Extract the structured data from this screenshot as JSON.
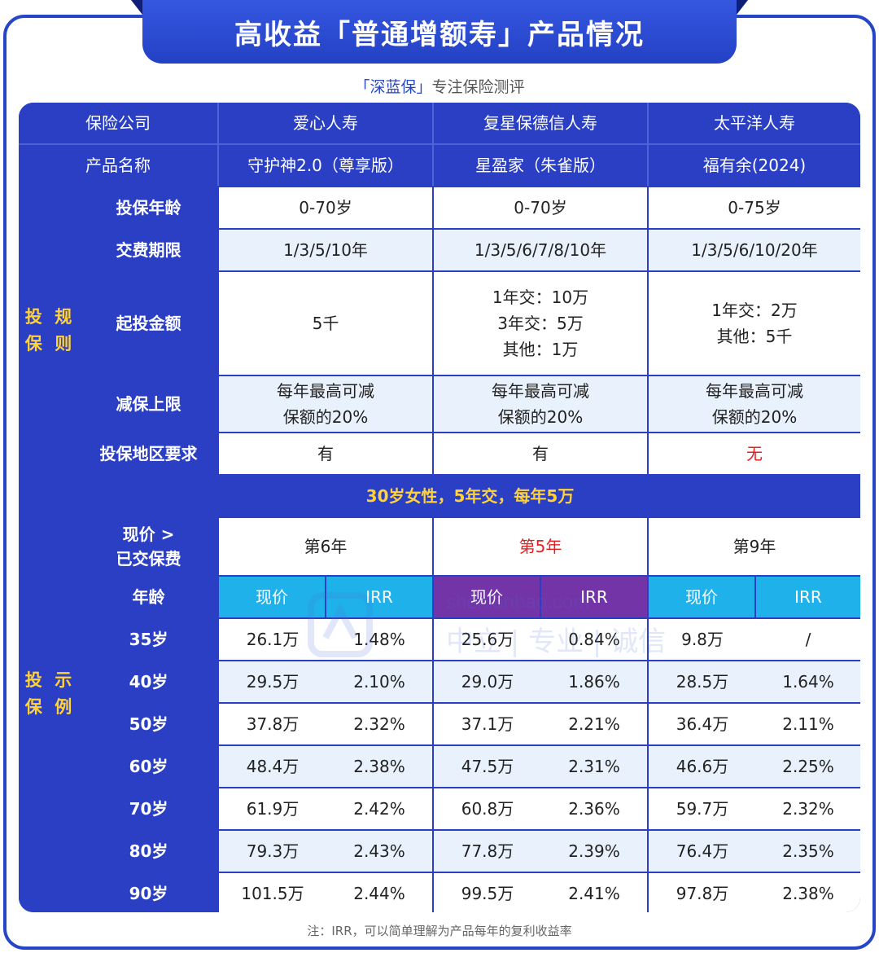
{
  "title": "高收益「普通增额寿」产品情况",
  "subtitle_brand": "「深蓝保」",
  "subtitle_rest": "专注保险测评",
  "header": {
    "company_label": "保险公司",
    "product_label": "产品名称",
    "companies": [
      "爱心人寿",
      "复星保德信人寿",
      "太平洋人寿"
    ],
    "products": [
      "守护神2.0（尊享版）",
      "星盈家（朱雀版）",
      "福有余(2024)"
    ]
  },
  "rules": {
    "section_label_1": "投保",
    "section_label_2": "规则",
    "age_label": "投保年龄",
    "ages": [
      "0-70岁",
      "0-70岁",
      "0-75岁"
    ],
    "pay_label": "交费期限",
    "pays": [
      "1/3/5/10年",
      "1/3/5/6/7/8/10年",
      "1/3/5/6/10/20年"
    ],
    "min_label": "起投金额",
    "min_c1": "5千",
    "min_c2": [
      "1年交：10万",
      "3年交：5万",
      "其他：1万"
    ],
    "min_c3": [
      "1年交：2万",
      "其他：5千"
    ],
    "reduce_label": "减保上限",
    "reduce_line1": "每年最高可减",
    "reduce_line2": "保额的20%",
    "region_label": "投保地区要求",
    "regions": [
      "有",
      "有",
      "无"
    ]
  },
  "example": {
    "section_label_1": "投保",
    "section_label_2": "示例",
    "scenario": "30岁女性，5年交，每年5万",
    "cv_label_1": "现价 >",
    "cv_label_2": "已交保费",
    "breakeven": [
      "第6年",
      "第5年",
      "第9年"
    ],
    "age_header": "年龄",
    "col_cv": "现价",
    "col_irr": "IRR",
    "rows": [
      {
        "age": "35岁",
        "v": [
          "26.1万",
          "1.48%",
          "25.6万",
          "0.84%",
          "9.8万",
          "/"
        ]
      },
      {
        "age": "40岁",
        "v": [
          "29.5万",
          "2.10%",
          "29.0万",
          "1.86%",
          "28.5万",
          "1.64%"
        ]
      },
      {
        "age": "50岁",
        "v": [
          "37.8万",
          "2.32%",
          "37.1万",
          "2.21%",
          "36.4万",
          "2.11%"
        ]
      },
      {
        "age": "60岁",
        "v": [
          "48.4万",
          "2.38%",
          "47.5万",
          "2.31%",
          "46.6万",
          "2.25%"
        ]
      },
      {
        "age": "70岁",
        "v": [
          "61.9万",
          "2.42%",
          "60.8万",
          "2.36%",
          "59.7万",
          "2.32%"
        ]
      },
      {
        "age": "80岁",
        "v": [
          "79.3万",
          "2.43%",
          "77.8万",
          "2.39%",
          "76.4万",
          "2.35%"
        ]
      },
      {
        "age": "90岁",
        "v": [
          "101.5万",
          "2.44%",
          "99.5万",
          "2.41%",
          "97.8万",
          "2.38%"
        ]
      }
    ]
  },
  "watermark_top": "shenlanbao.com",
  "watermark_bottom": "中立 | 专业 | 诚信",
  "footnote": "注：IRR，可以简单理解为产品每年的复利收益率",
  "colors": {
    "primary_blue": "#2a3fc4",
    "accent_yellow": "#ffd23a",
    "alt_row": "#e8f1fc",
    "cyan_header": "#1fb1ea",
    "purple_header": "#7334a8",
    "red_text": "#e81d1d"
  }
}
